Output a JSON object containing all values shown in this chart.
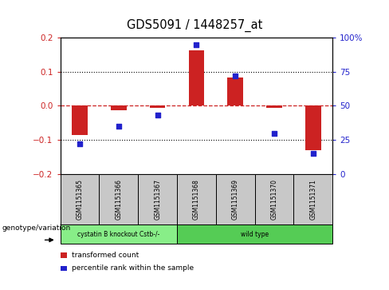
{
  "title": "GDS5091 / 1448257_at",
  "samples": [
    "GSM1151365",
    "GSM1151366",
    "GSM1151367",
    "GSM1151368",
    "GSM1151369",
    "GSM1151370",
    "GSM1151371"
  ],
  "bar_values": [
    -0.085,
    -0.012,
    -0.005,
    0.162,
    0.083,
    -0.005,
    -0.13
  ],
  "dot_values_pct": [
    22,
    35,
    43,
    95,
    72,
    30,
    15
  ],
  "bar_color": "#cc2222",
  "dot_color": "#2222cc",
  "ylim": [
    -0.2,
    0.2
  ],
  "y2lim": [
    0,
    100
  ],
  "yticks": [
    -0.2,
    -0.1,
    0.0,
    0.1,
    0.2
  ],
  "y2ticks": [
    0,
    25,
    50,
    75,
    100
  ],
  "y2ticklabels": [
    "0",
    "25",
    "50",
    "75",
    "100%"
  ],
  "groups": [
    {
      "label": "cystatin B knockout Cstb-/-",
      "start": 0,
      "end": 2,
      "color": "#88ee88"
    },
    {
      "label": "wild type",
      "start": 3,
      "end": 6,
      "color": "#55cc55"
    }
  ],
  "group_row_label": "genotype/variation",
  "legend_items": [
    {
      "label": "transformed count",
      "color": "#cc2222"
    },
    {
      "label": "percentile rank within the sample",
      "color": "#2222cc"
    }
  ],
  "sample_box_color": "#c8c8c8",
  "bar_width": 0.4
}
